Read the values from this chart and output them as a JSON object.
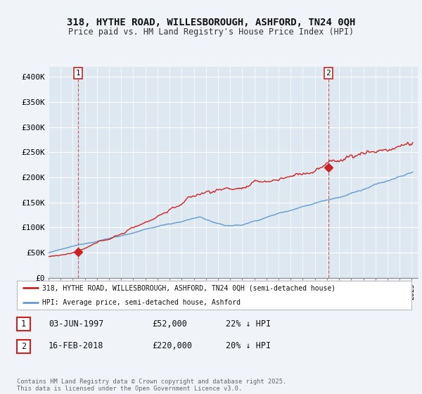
{
  "title_line1": "318, HYTHE ROAD, WILLESBOROUGH, ASHFORD, TN24 0QH",
  "title_line2": "Price paid vs. HM Land Registry's House Price Index (HPI)",
  "ylim": [
    0,
    420000
  ],
  "yticks": [
    0,
    50000,
    100000,
    150000,
    200000,
    250000,
    300000,
    350000,
    400000
  ],
  "ytick_labels": [
    "£0",
    "£50K",
    "£100K",
    "£150K",
    "£200K",
    "£250K",
    "£300K",
    "£350K",
    "£400K"
  ],
  "transaction1_date": "03-JUN-1997",
  "transaction1_price": 52000,
  "transaction1_x": 1997.42,
  "transaction2_date": "16-FEB-2018",
  "transaction2_price": 220000,
  "transaction2_x": 2018.12,
  "red_line_color": "#cc2222",
  "blue_line_color": "#6699cc",
  "background_color": "#f0f4f8",
  "plot_bg_color": "#dde8f0",
  "grid_color": "#ffffff",
  "legend_label_red": "318, HYTHE ROAD, WILLESBOROUGH, ASHFORD, TN24 0QH (semi-detached house)",
  "legend_label_blue": "HPI: Average price, semi-detached house, Ashford",
  "footnote": "Contains HM Land Registry data © Crown copyright and database right 2025.\nThis data is licensed under the Open Government Licence v3.0.",
  "marker_color": "#cc2222",
  "dashed_line_color": "#cc2222"
}
